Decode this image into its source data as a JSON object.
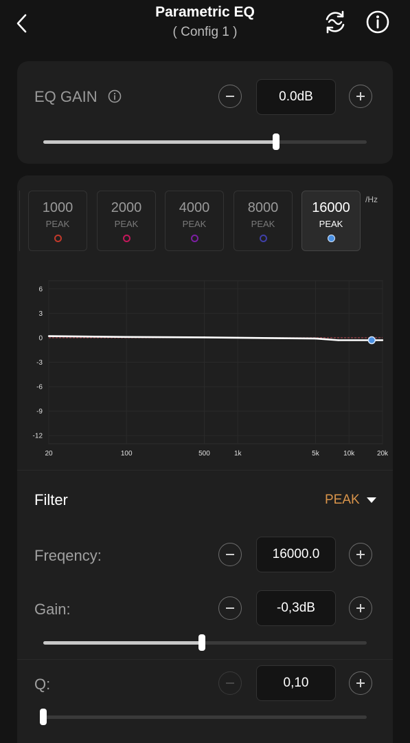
{
  "header": {
    "title": "Parametric EQ",
    "subtitle": "( Config 1 )",
    "back_icon": "chevron-left-icon",
    "compare_icon": "wave-compare-icon",
    "info_icon": "info-icon"
  },
  "eq_gain": {
    "label": "EQ GAIN",
    "value": "0.0dB",
    "slider_fraction": 0.72
  },
  "bands": {
    "unit": "/Hz",
    "items": [
      {
        "freq": "1000",
        "type": "PEAK",
        "color": "#c0392b"
      },
      {
        "freq": "2000",
        "type": "PEAK",
        "color": "#c2185b"
      },
      {
        "freq": "4000",
        "type": "PEAK",
        "color": "#7b1fa2"
      },
      {
        "freq": "8000",
        "type": "PEAK",
        "color": "#3f3fa8"
      },
      {
        "freq": "16000",
        "type": "PEAK",
        "color": "#4a90e2",
        "active": true
      }
    ]
  },
  "chart_data": {
    "type": "line",
    "x_ticks": [
      "20",
      "100",
      "500",
      "1k",
      "5k",
      "10k",
      "20k"
    ],
    "y_ticks": [
      "6",
      "3",
      "0",
      "-3",
      "-6",
      "-9",
      "-12"
    ],
    "ylim": [
      -13,
      7
    ],
    "xlim": [
      20,
      20000
    ],
    "x_scale": "log",
    "grid": true,
    "series": [
      {
        "x": [
          20,
          100,
          500,
          1000,
          5000,
          8000,
          16000,
          20000
        ],
        "y": [
          0.2,
          0.1,
          0.05,
          0.0,
          -0.1,
          -0.3,
          -0.3,
          -0.3
        ]
      }
    ],
    "marker": {
      "x": 16000,
      "y": -0.3
    }
  },
  "filter": {
    "label": "Filter",
    "type": "PEAK",
    "type_color": "#d9944a"
  },
  "frequency": {
    "label": "Freqency:",
    "value": "16000.0"
  },
  "gain": {
    "label": "Gain:",
    "value": "-0,3dB",
    "slider_fraction": 0.49
  },
  "q": {
    "label": "Q:",
    "value": "0,10",
    "slider_fraction": 0.0
  }
}
